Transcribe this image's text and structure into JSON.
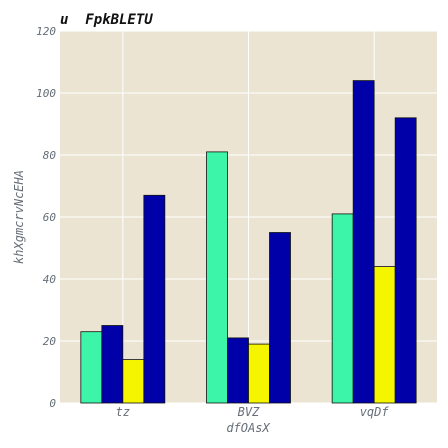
{
  "chart_data": {
    "type": "bar",
    "title": "u  FpkBLETU",
    "xlabel": "dfOAsX",
    "ylabel": "khXgmcrvNcEHA",
    "categories": [
      "tz",
      "BVZ",
      "vqDf"
    ],
    "ylim": [
      0,
      120
    ],
    "yticks": [
      0,
      20,
      40,
      60,
      80,
      100,
      120
    ],
    "grid": true,
    "background_color": "#ebe4d3",
    "series": [
      {
        "color": "#3cf5a8",
        "values": [
          23,
          81,
          61
        ]
      },
      {
        "color": "#0000a8",
        "values": [
          25,
          21,
          104
        ]
      },
      {
        "color": "#f5f500",
        "values": [
          14,
          19,
          44
        ]
      },
      {
        "color": "#0000a8",
        "values": [
          67,
          55,
          92
        ]
      }
    ]
  }
}
